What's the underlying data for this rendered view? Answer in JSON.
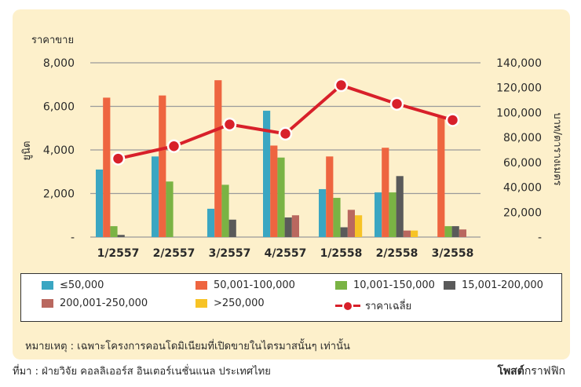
{
  "chart_data": {
    "type": "bar",
    "ylabel_left_top": "ราคาขาย",
    "ylabel_left": "ยูนิต",
    "ylabel_right": "บาท/ตารางเมตร",
    "y_left_ticks": [
      "8,000",
      "6,000",
      "4,000",
      "2,000",
      "-"
    ],
    "y_right_ticks": [
      "140,000",
      "120,000",
      "100,000",
      "80,000",
      "60,000",
      "40,000",
      "20,000",
      "-"
    ],
    "ylim_left": [
      0,
      8000
    ],
    "ylim_right": [
      0,
      140000
    ],
    "categories": [
      "1/2557",
      "2/2557",
      "3/2557",
      "4/2557",
      "1/2558",
      "2/2558",
      "3/2558"
    ],
    "series": [
      {
        "name": "≤50,000",
        "color": "#3aa6c2",
        "values": [
          3100,
          3700,
          1300,
          5800,
          2200,
          2050,
          0
        ]
      },
      {
        "name": "50,001-100,000",
        "color": "#ee6540",
        "values": [
          6400,
          6500,
          7200,
          4200,
          3700,
          4100,
          5500
        ]
      },
      {
        "name": "10,001-150,000",
        "color": "#7ab344",
        "values": [
          500,
          2550,
          2400,
          3650,
          1800,
          2050,
          500
        ]
      },
      {
        "name": "15,001-200,000",
        "color": "#5a5a5a",
        "values": [
          100,
          0,
          800,
          900,
          450,
          2800,
          500
        ]
      },
      {
        "name": "200,001-250,000",
        "color": "#b9685f",
        "values": [
          0,
          0,
          0,
          1000,
          1250,
          300,
          350
        ]
      },
      {
        "name": ">250,000",
        "color": "#f7c325",
        "values": [
          0,
          0,
          0,
          0,
          1000,
          300,
          0
        ]
      }
    ],
    "line_series": {
      "name": "ราคาเฉลี่ย",
      "color": "#d8202a",
      "axis": "right",
      "values": [
        63000,
        73000,
        90500,
        83000,
        122000,
        107000,
        94000
      ]
    },
    "legend_placement": "bottom",
    "grid": true
  },
  "note": "หมายเหตุ : เฉพาะโครงการคอนโดมิเนียมที่เปิดขายในไตรมาสนั้นๆ เท่านั้น",
  "source": "ที่มา : ฝ่ายวิจัย คอลลิเออร์ส อินเตอร์เนชั่นแนล ประเทศไทย",
  "brand": {
    "bold": "โพสต์",
    "rest": "กราฟฟิก"
  }
}
